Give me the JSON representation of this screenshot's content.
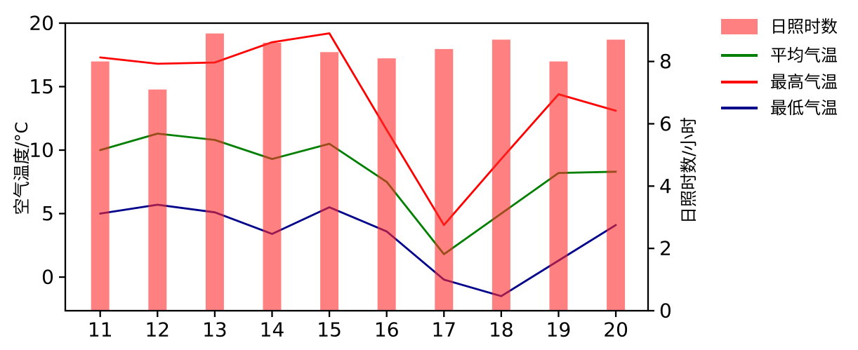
{
  "chart_data": {
    "type": "bar",
    "subtype": "dual-axis bar + 3 lines",
    "categories": [
      "11",
      "12",
      "13",
      "14",
      "15",
      "16",
      "17",
      "18",
      "19",
      "20"
    ],
    "series": [
      {
        "name": "日照时数",
        "kind": "bar",
        "yaxis": "right",
        "unit": "小时",
        "color": "#FF2B2B",
        "opacity": 0.6,
        "values": [
          8.0,
          7.1,
          8.9,
          8.6,
          8.3,
          8.1,
          8.4,
          8.7,
          8.0,
          8.7
        ]
      },
      {
        "name": "平均气温",
        "kind": "line",
        "yaxis": "left",
        "unit": "°C",
        "color": "#007F00",
        "values": [
          10.0,
          11.3,
          10.8,
          9.3,
          10.5,
          7.5,
          1.8,
          5.0,
          8.2,
          8.3
        ]
      },
      {
        "name": "最高气温",
        "kind": "line",
        "yaxis": "left",
        "unit": "°C",
        "color": "#FE0000",
        "values": [
          17.3,
          16.8,
          16.9,
          18.5,
          19.2,
          11.6,
          4.1,
          9.3,
          14.4,
          13.1
        ]
      },
      {
        "name": "最低气温",
        "kind": "line",
        "yaxis": "left",
        "unit": "°C",
        "color": "#00008B",
        "values": [
          5.0,
          5.7,
          5.1,
          3.4,
          5.5,
          3.6,
          -0.2,
          -1.5,
          1.3,
          4.1
        ]
      }
    ],
    "left_axis": {
      "label": "空气温度/°C",
      "ticks": [
        0,
        5,
        10,
        15,
        20
      ],
      "range": [
        -2.65,
        20
      ]
    },
    "right_axis": {
      "label": "日照时数/小时",
      "ticks": [
        0,
        2,
        4,
        6,
        8
      ],
      "range": [
        0,
        9.23
      ]
    },
    "x_axis": {
      "tick_labels": [
        "11",
        "12",
        "13",
        "14",
        "15",
        "16",
        "17",
        "18",
        "19",
        "20"
      ]
    },
    "legend": {
      "labels": [
        "日照时数",
        "平均气温",
        "最高气温",
        "最低气温"
      ],
      "position": "outside-upper-right",
      "grid": "off"
    }
  }
}
